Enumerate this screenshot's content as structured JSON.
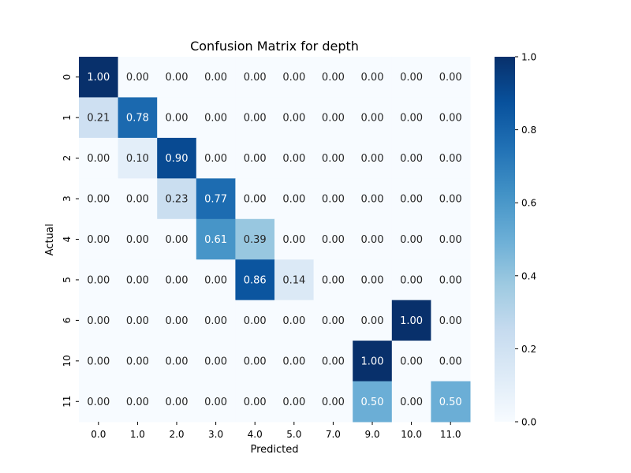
{
  "chart_data": {
    "type": "heatmap",
    "title": "Confusion Matrix for depth",
    "xlabel": "Predicted",
    "ylabel": "Actual",
    "x_categories": [
      "0.0",
      "1.0",
      "2.0",
      "3.0",
      "4.0",
      "5.0",
      "7.0",
      "9.0",
      "10.0",
      "11.0"
    ],
    "y_categories": [
      "0",
      "1",
      "2",
      "3",
      "4",
      "5",
      "6",
      "10",
      "11"
    ],
    "values": [
      [
        1.0,
        0.0,
        0.0,
        0.0,
        0.0,
        0.0,
        0.0,
        0.0,
        0.0,
        0.0
      ],
      [
        0.21,
        0.78,
        0.0,
        0.0,
        0.0,
        0.0,
        0.0,
        0.0,
        0.0,
        0.0
      ],
      [
        0.0,
        0.1,
        0.9,
        0.0,
        0.0,
        0.0,
        0.0,
        0.0,
        0.0,
        0.0
      ],
      [
        0.0,
        0.0,
        0.23,
        0.77,
        0.0,
        0.0,
        0.0,
        0.0,
        0.0,
        0.0
      ],
      [
        0.0,
        0.0,
        0.0,
        0.61,
        0.39,
        0.0,
        0.0,
        0.0,
        0.0,
        0.0
      ],
      [
        0.0,
        0.0,
        0.0,
        0.0,
        0.86,
        0.14,
        0.0,
        0.0,
        0.0,
        0.0
      ],
      [
        0.0,
        0.0,
        0.0,
        0.0,
        0.0,
        0.0,
        0.0,
        0.0,
        1.0,
        0.0
      ],
      [
        0.0,
        0.0,
        0.0,
        0.0,
        0.0,
        0.0,
        0.0,
        1.0,
        0.0,
        0.0
      ],
      [
        0.0,
        0.0,
        0.0,
        0.0,
        0.0,
        0.0,
        0.0,
        0.5,
        0.0,
        0.5
      ]
    ],
    "value_format": "2 decimals",
    "colormap": "Blues",
    "colorbar": {
      "range": [
        0.0,
        1.0
      ],
      "ticks": [
        "0.0",
        "0.2",
        "0.4",
        "0.6",
        "0.8",
        "1.0"
      ]
    },
    "grid": false
  }
}
